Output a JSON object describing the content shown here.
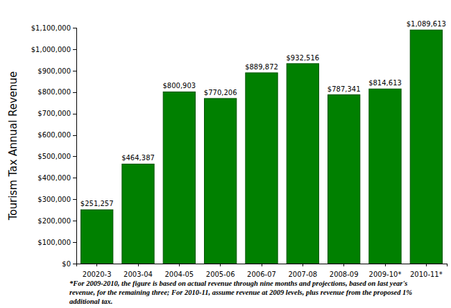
{
  "chart_data": {
    "type": "bar",
    "y_label": "Tourism Tax Annual Revenue",
    "categories": [
      "20020-3",
      "2003-04",
      "2004-05",
      "2005-06",
      "2006-07",
      "2007-08",
      "2008-09",
      "2009-10*",
      "2010-11*"
    ],
    "values": [
      251257,
      464387,
      800903,
      770206,
      889872,
      932516,
      787341,
      814613,
      1089613
    ],
    "value_labels": [
      "$251,257",
      "$464,387",
      "$800,903",
      "$770,206",
      "$889,872",
      "$932,516",
      "$787,341",
      "$814,613",
      "$1,089,613"
    ],
    "data_labels": true,
    "color": "#008000",
    "grid": false,
    "ylim": [
      0,
      1100000
    ],
    "yticks": [
      {
        "value": 0,
        "label": "$0"
      },
      {
        "value": 100000,
        "label": "$100,000"
      },
      {
        "value": 200000,
        "label": "$200,000"
      },
      {
        "value": 300000,
        "label": "$300,000"
      },
      {
        "value": 400000,
        "label": "$400,000"
      },
      {
        "value": 500000,
        "label": "$500,000"
      },
      {
        "value": 600000,
        "label": "$600,000"
      },
      {
        "value": 700000,
        "label": "$700,000"
      },
      {
        "value": 800000,
        "label": "$800,000"
      },
      {
        "value": 900000,
        "label": "$900,000"
      },
      {
        "value": 1000000,
        "label": "$1,000,000"
      },
      {
        "value": 1100000,
        "label": "$1,100,000"
      }
    ],
    "annotations": [
      "*For 2009-2010, the figure is based on actual revenue through nine months and projections, based on last year's",
      "revenue, for the remaining three; For 2010-11, assume revenue at 2009 levels, plus revenue from the proposed 1%",
      "additional tax."
    ]
  }
}
